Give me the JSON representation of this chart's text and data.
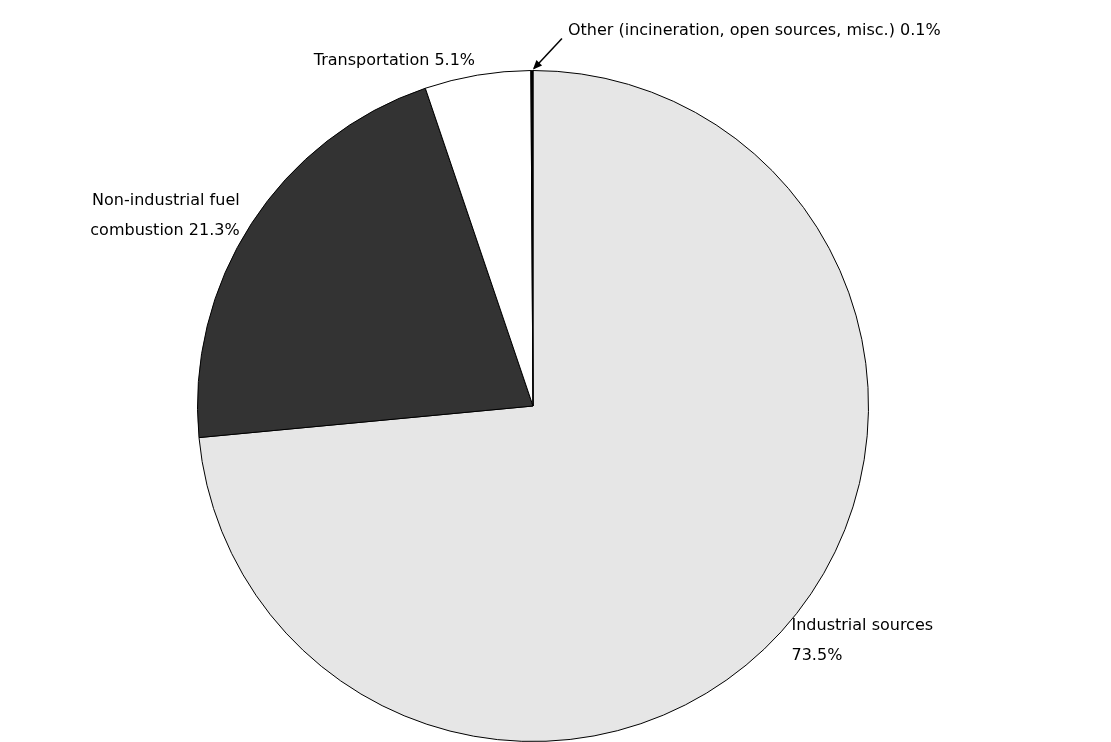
{
  "chart_data": {
    "type": "pie",
    "categories": [
      "Industrial sources",
      "Non-industrial fuel combustion",
      "Transportation",
      "Other (incineration, open sources, misc.)"
    ],
    "values": [
      73.5,
      21.3,
      5.1,
      0.1
    ],
    "value_labels": [
      "73.5%",
      "21.3%",
      "5.1%",
      "0.1%"
    ],
    "colors": [
      "#e6e6e6",
      "#333333",
      "#ffffff",
      "#000000"
    ],
    "legend": false
  }
}
